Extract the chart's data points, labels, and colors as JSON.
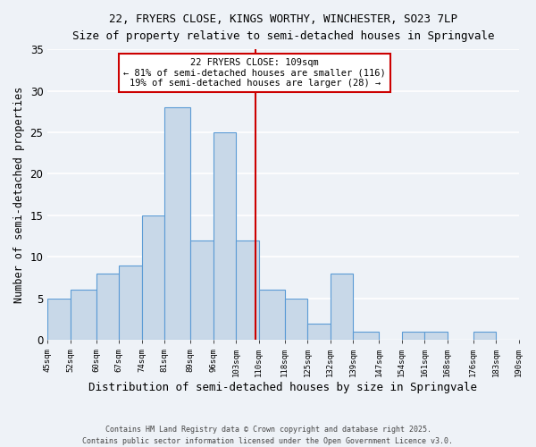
{
  "title1": "22, FRYERS CLOSE, KINGS WORTHY, WINCHESTER, SO23 7LP",
  "title2": "Size of property relative to semi-detached houses in Springvale",
  "xlabel": "Distribution of semi-detached houses by size in Springvale",
  "ylabel": "Number of semi-detached properties",
  "bin_edges": [
    45,
    52,
    60,
    67,
    74,
    81,
    89,
    96,
    103,
    110,
    118,
    125,
    132,
    139,
    147,
    154,
    161,
    168,
    176,
    183,
    190
  ],
  "counts": [
    5,
    6,
    8,
    9,
    15,
    28,
    12,
    25,
    12,
    6,
    5,
    2,
    8,
    1,
    0,
    1,
    1,
    0,
    1,
    0
  ],
  "bar_color": "#c8d8e8",
  "bar_edge_color": "#5b9bd5",
  "property_size": 109,
  "vline_color": "#cc0000",
  "annotation_title": "22 FRYERS CLOSE: 109sqm",
  "annotation_line1": "← 81% of semi-detached houses are smaller (116)",
  "annotation_line2": "19% of semi-detached houses are larger (28) →",
  "annotation_box_color": "#ffffff",
  "annotation_box_edge": "#cc0000",
  "tick_labels": [
    "45sqm",
    "52sqm",
    "60sqm",
    "67sqm",
    "74sqm",
    "81sqm",
    "89sqm",
    "96sqm",
    "103sqm",
    "110sqm",
    "118sqm",
    "125sqm",
    "132sqm",
    "139sqm",
    "147sqm",
    "154sqm",
    "161sqm",
    "168sqm",
    "176sqm",
    "183sqm",
    "190sqm"
  ],
  "ylim": [
    0,
    35
  ],
  "yticks": [
    0,
    5,
    10,
    15,
    20,
    25,
    30,
    35
  ],
  "footer1": "Contains HM Land Registry data © Crown copyright and database right 2025.",
  "footer2": "Contains public sector information licensed under the Open Government Licence v3.0.",
  "background_color": "#eef2f7",
  "grid_color": "#ffffff"
}
